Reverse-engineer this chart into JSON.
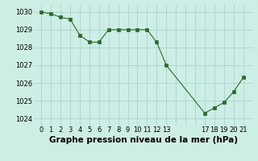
{
  "x": [
    0,
    1,
    2,
    3,
    4,
    5,
    6,
    7,
    8,
    9,
    10,
    11,
    12,
    13,
    17,
    18,
    19,
    20,
    21
  ],
  "y": [
    1030.0,
    1029.9,
    1029.7,
    1029.6,
    1028.7,
    1028.3,
    1028.3,
    1029.0,
    1029.0,
    1029.0,
    1029.0,
    1029.0,
    1028.3,
    1027.0,
    1024.3,
    1024.6,
    1024.9,
    1025.5,
    1026.3
  ],
  "line_color": "#2a6b2a",
  "marker_color": "#2a6b2a",
  "bg_color": "#cceee4",
  "grid_color": "#aad4ca",
  "title": "Graphe pression niveau de la mer (hPa)",
  "xlabel_ticks": [
    0,
    1,
    2,
    3,
    4,
    5,
    6,
    7,
    8,
    9,
    10,
    11,
    12,
    13,
    17,
    18,
    19,
    20,
    21
  ],
  "ylim": [
    1023.6,
    1030.4
  ],
  "yticks": [
    1024,
    1025,
    1026,
    1027,
    1028,
    1029,
    1030
  ],
  "title_fontsize": 7.5,
  "tick_fontsize": 6.0
}
